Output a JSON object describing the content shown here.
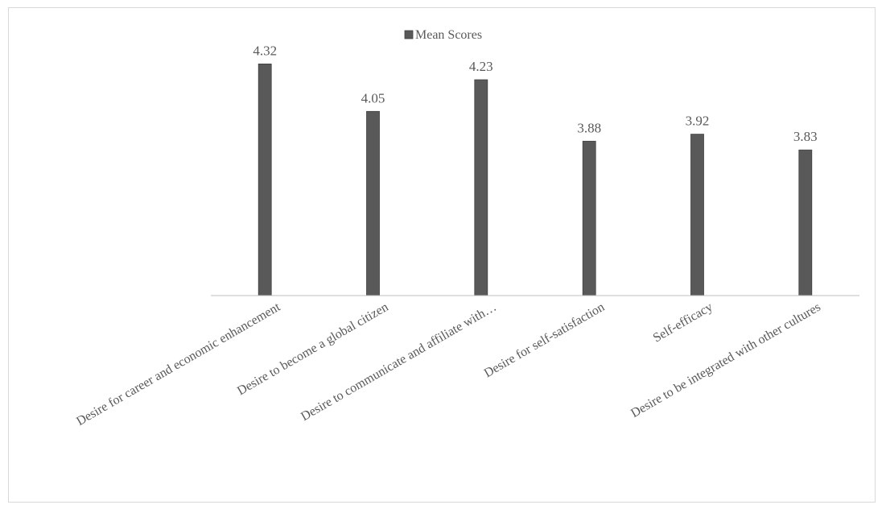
{
  "chart_data": {
    "type": "bar",
    "categories": [
      "Desire for career and economic enhancement",
      "Desire to become a global citizen",
      "Desire to communicate and affiliate with…",
      "Desire for self-satisfaction",
      "Self-efficacy",
      "Desire to be integrated with other cultures"
    ],
    "series": [
      {
        "name": "Mean Scores",
        "values": [
          4.32,
          4.05,
          4.23,
          3.88,
          3.92,
          3.83
        ],
        "color": "#595959"
      }
    ],
    "data_labels": [
      "4.32",
      "4.05",
      "4.23",
      "3.88",
      "3.92",
      "3.83"
    ],
    "ylim": [
      3.0,
      4.4
    ],
    "grid": false,
    "legend_position": "top-center",
    "title": "",
    "xlabel": "",
    "ylabel": ""
  }
}
